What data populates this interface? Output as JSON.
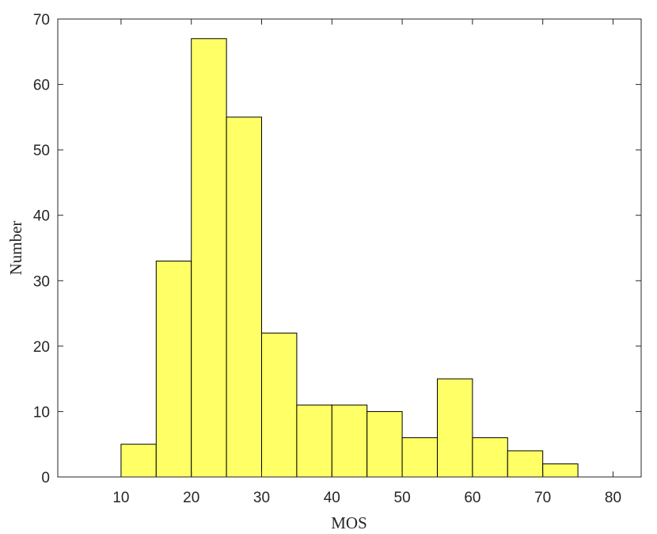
{
  "chart_data": {
    "type": "histogram",
    "xlabel": "MOS",
    "ylabel": "Number",
    "bins": [
      5,
      10,
      15,
      20,
      25,
      30,
      35,
      40,
      45,
      50,
      55,
      60,
      65,
      70,
      75,
      80
    ],
    "values": [
      0,
      5,
      33,
      67,
      55,
      22,
      11,
      11,
      10,
      6,
      15,
      6,
      4,
      2,
      0
    ],
    "color": "#ffff66",
    "xlim": [
      1,
      84
    ],
    "xticks": [
      10,
      20,
      30,
      40,
      50,
      60,
      70,
      80
    ],
    "ylim": [
      0,
      70
    ],
    "yticks": [
      0,
      10,
      20,
      30,
      40,
      50,
      60,
      70
    ]
  }
}
